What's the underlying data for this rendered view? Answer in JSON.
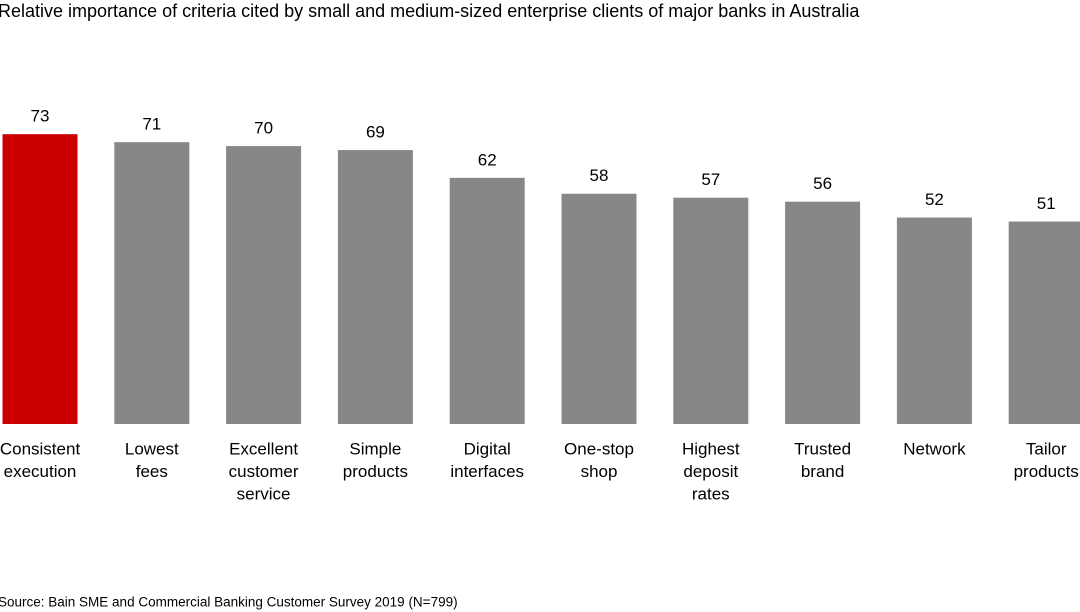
{
  "chart_data": {
    "type": "bar",
    "title": "Relative importance of criteria cited by small and medium-sized enterprise clients of major banks in Australia",
    "categories": [
      [
        "Consistent",
        "execution"
      ],
      [
        "Lowest",
        "fees"
      ],
      [
        "Excellent",
        "customer",
        "service"
      ],
      [
        "Simple",
        "products"
      ],
      [
        "Digital",
        "interfaces"
      ],
      [
        "One-stop",
        "shop"
      ],
      [
        "Highest",
        "deposit",
        "rates"
      ],
      [
        "Trusted",
        "brand"
      ],
      [
        "Network"
      ],
      [
        "Tailor",
        "products"
      ]
    ],
    "values": [
      73,
      71,
      70,
      69,
      62,
      58,
      57,
      56,
      52,
      51
    ],
    "colors": [
      "#cc0000",
      "#878787",
      "#878787",
      "#878787",
      "#878787",
      "#878787",
      "#878787",
      "#878787",
      "#878787",
      "#878787"
    ],
    "source": "Source: Bain SME and Commercial Banking Customer Survey 2019 (N=799)"
  }
}
